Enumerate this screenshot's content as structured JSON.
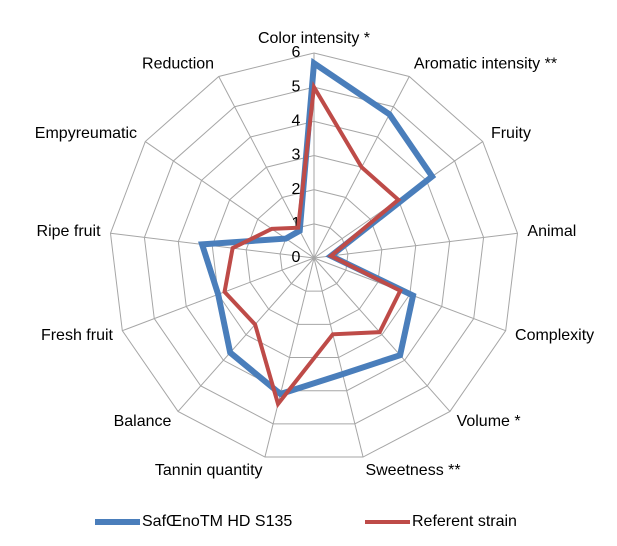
{
  "chart_data": {
    "type": "radar",
    "categories": [
      "Color intensity *",
      "Aromatic intensity **",
      "Fruity",
      "Animal",
      "Complexity",
      "Volume *",
      "Sweetness **",
      "Tannin quantity",
      "Balance",
      "Fresh fruit",
      "Ripe fruit",
      "Empyreumatic",
      "Reduction"
    ],
    "series": [
      {
        "name": "SafŒnoTM HD S135",
        "color": "#4a7ebb",
        "values": [
          5.7,
          4.75,
          4.2,
          0.5,
          3.1,
          3.8,
          3.5,
          4.1,
          3.7,
          3.0,
          3.3,
          1.0,
          0.9
        ]
      },
      {
        "name": "Referent strain",
        "color": "#be4b48",
        "values": [
          5.0,
          3.0,
          3.0,
          0.5,
          2.7,
          2.9,
          2.3,
          4.4,
          2.6,
          2.8,
          2.4,
          1.5,
          1.0
        ]
      }
    ],
    "rlim": [
      0,
      6
    ],
    "rticks": [
      0,
      1,
      2,
      3,
      4,
      5,
      6
    ],
    "legend": "bottom"
  }
}
